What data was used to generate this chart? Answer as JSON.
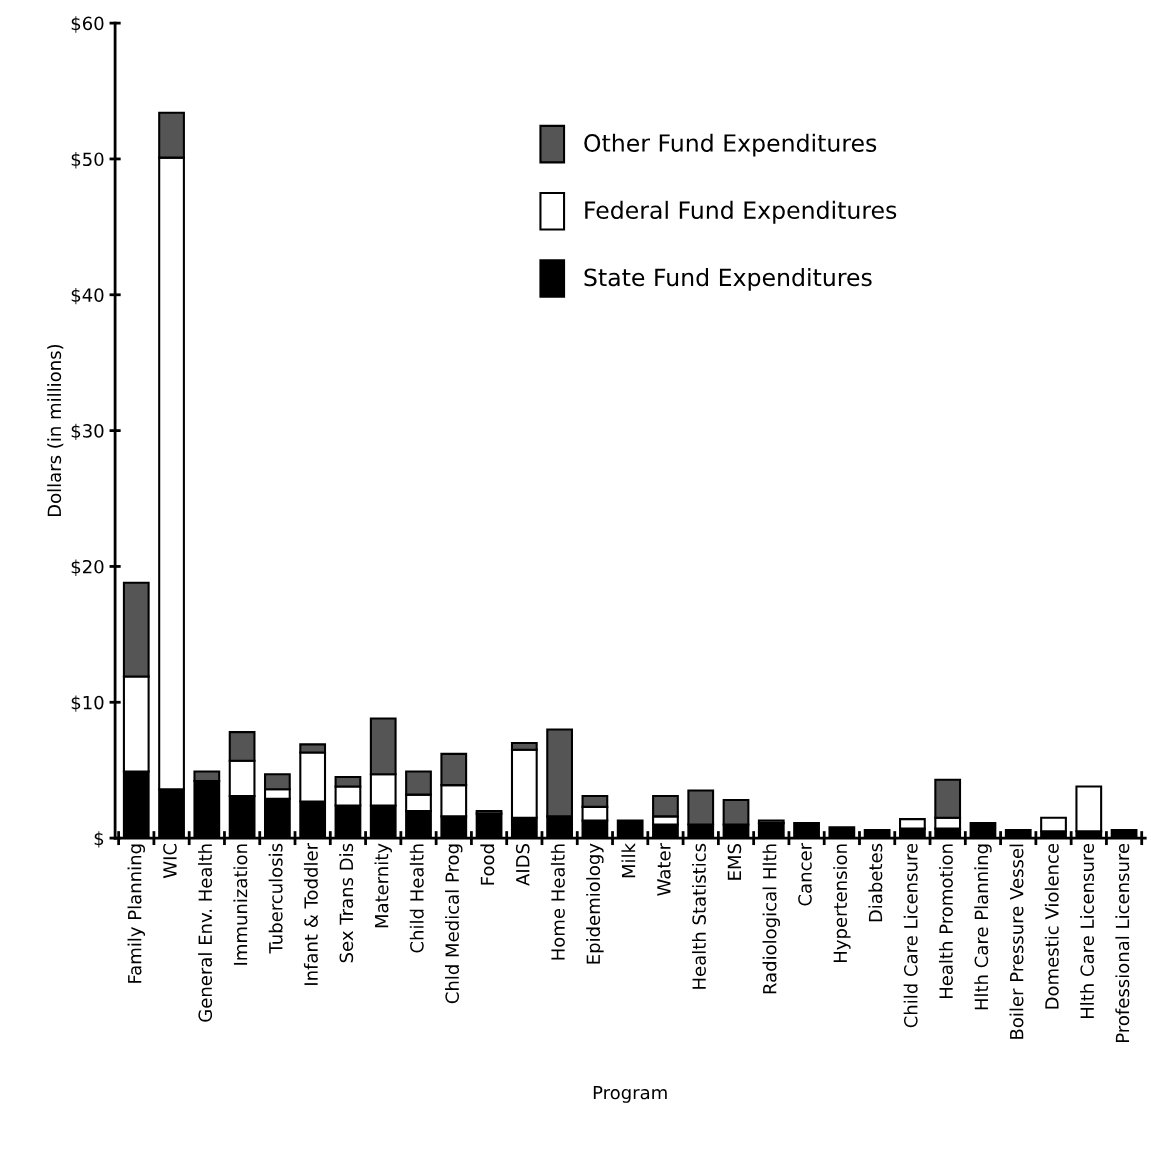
{
  "chart_data": {
    "type": "bar",
    "stacked": true,
    "xlabel": "Program",
    "ylabel": "Dollars (in millions)",
    "categories": [
      "Family Planning",
      "WIC",
      "General Env. Health",
      "Immunization",
      "Tuberculosis",
      "Infant & Toddler",
      "Sex Trans Dis",
      "Maternity",
      "Child Health",
      "Chld Medical Prog",
      "Food",
      "AIDS",
      "Home Health",
      "Epidemiology",
      "Milk",
      "Water",
      "Health Statistics",
      "EMS",
      "Radiological Hlth",
      "Cancer",
      "Hypertension",
      "Diabetes",
      "Child Care Licensure",
      "Health Promotion",
      "Hlth Care Planning",
      "Boiler Pressure Vessel",
      "Domestic Violence",
      "Hlth Care Licensure",
      "Professional Licensure"
    ],
    "series": [
      {
        "name": "State Fund Expenditures",
        "color": "#000000",
        "values": [
          4.9,
          3.6,
          4.2,
          3.1,
          2.9,
          2.7,
          2.4,
          2.4,
          2.0,
          1.6,
          1.8,
          1.5,
          1.6,
          1.3,
          1.3,
          1.0,
          1.0,
          1.0,
          1.1,
          1.1,
          0.8,
          0.6,
          0.7,
          0.7,
          1.1,
          0.6,
          0.5,
          0.5,
          0.6
        ]
      },
      {
        "name": "Federal Fund Expenditures",
        "color": "#ffffff",
        "values": [
          7.0,
          46.5,
          null,
          2.6,
          0.7,
          3.6,
          1.4,
          2.3,
          1.2,
          2.3,
          null,
          5.0,
          null,
          1.0,
          null,
          0.6,
          null,
          null,
          null,
          null,
          null,
          null,
          0.7,
          0.8,
          null,
          null,
          1.0,
          3.3,
          null
        ]
      },
      {
        "name": "Other Fund Expenditures",
        "color": "#555555",
        "values": [
          6.9,
          3.3,
          0.7,
          2.1,
          1.1,
          0.6,
          0.7,
          4.1,
          1.7,
          2.3,
          0.2,
          0.5,
          6.4,
          0.8,
          null,
          1.5,
          2.5,
          1.8,
          0.2,
          null,
          null,
          null,
          null,
          2.8,
          null,
          null,
          null,
          null,
          null
        ]
      }
    ],
    "ylim": [
      0,
      60
    ],
    "yticks": [
      {
        "value": 0,
        "label": "$"
      },
      {
        "value": 10,
        "label": "$10"
      },
      {
        "value": 20,
        "label": "$20"
      },
      {
        "value": 30,
        "label": "$30"
      },
      {
        "value": 40,
        "label": "$40"
      },
      {
        "value": 50,
        "label": "$50"
      },
      {
        "value": 60,
        "label": "$60"
      }
    ],
    "legend": "top right",
    "grid": false
  }
}
